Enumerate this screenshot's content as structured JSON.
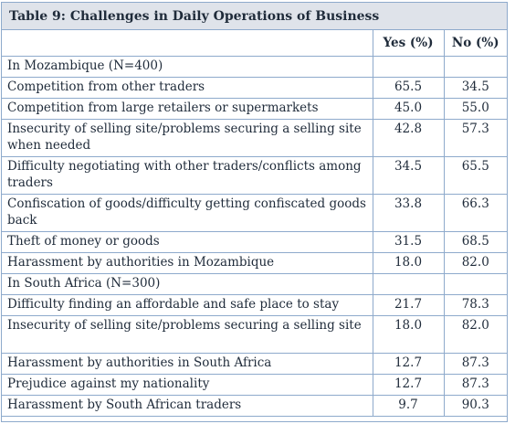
{
  "table": {
    "title": "Table 9: Challenges in Daily Operations of Business",
    "header": [
      "",
      "Yes (%)",
      "No (%)"
    ],
    "rows": [
      {
        "label": "In Mozambique (N=400)",
        "yes": "",
        "no": ""
      },
      {
        "label": "Competition from other traders",
        "yes": "65.5",
        "no": "34.5"
      },
      {
        "label": "Competition from large retailers or supermarkets",
        "yes": "45.0",
        "no": "55.0"
      },
      {
        "label": "Insecurity of selling site/problems securing a selling site when needed",
        "yes": "42.8",
        "no": "57.3"
      },
      {
        "label": "Difficulty negotiating with other traders/conflicts among traders",
        "yes": "34.5",
        "no": "65.5"
      },
      {
        "label": "Confiscation of goods/difficulty getting confiscated goods back",
        "yes": "33.8",
        "no": "66.3"
      },
      {
        "label": "Theft of money or goods",
        "yes": "31.5",
        "no": "68.5"
      },
      {
        "label": "Harassment by authorities in Mozambique",
        "yes": "18.0",
        "no": "82.0"
      },
      {
        "label": "In South Africa (N=300)",
        "yes": "",
        "no": ""
      },
      {
        "label": "Difficulty finding an affordable and safe place to stay",
        "yes": "21.7",
        "no": "78.3"
      },
      {
        "label": "Insecurity of selling site/problems securing a selling site",
        "yes": "18.0",
        "no": "82.0"
      },
      {
        "label": "Harassment by authorities in South Africa",
        "yes": "12.7",
        "no": "87.3"
      },
      {
        "label": "Prejudice against my nationality",
        "yes": "12.7",
        "no": "87.3"
      },
      {
        "label": "Harassment by South African traders",
        "yes": "9.7",
        "no": "90.3"
      }
    ]
  }
}
